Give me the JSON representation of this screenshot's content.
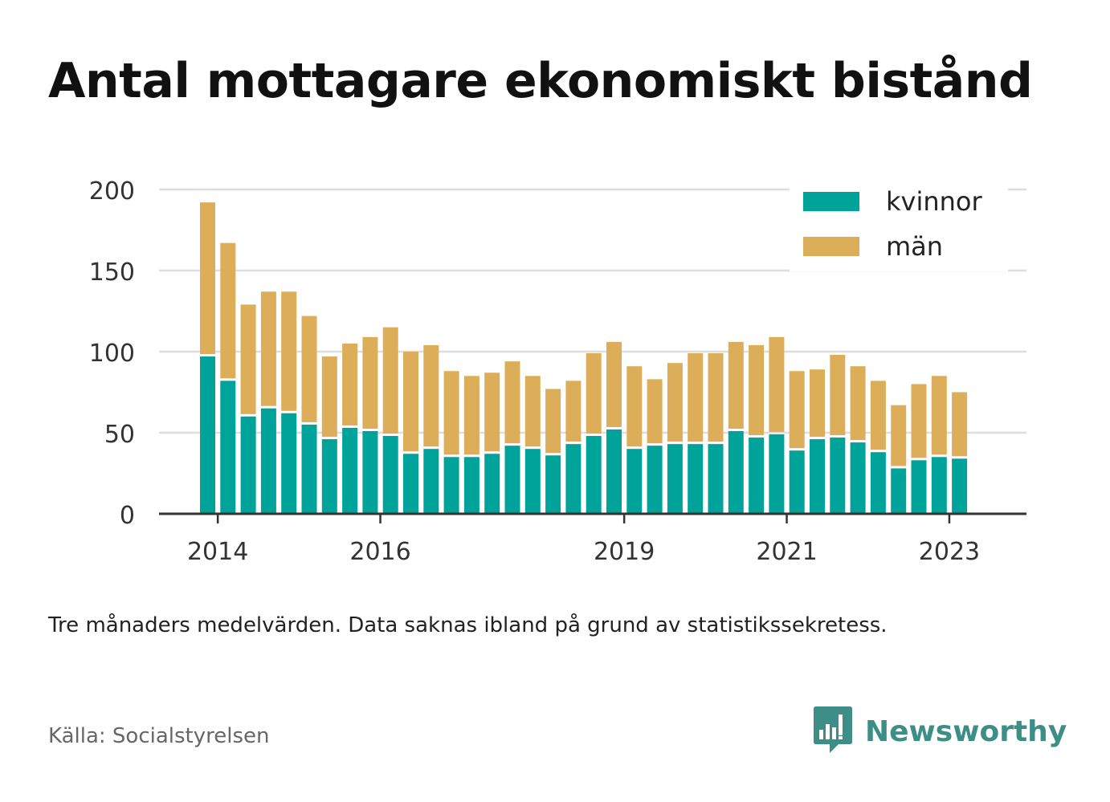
{
  "title": "Antal mottagare ekonomiskt bistånd",
  "caption": "Tre månaders medelvärden. Data saknas ibland på grund av statistikssekretess.",
  "source": "Källa: Socialstyrelsen",
  "brand": {
    "name": "Newsworthy",
    "icon": "newsworthy-logo-icon",
    "color": "#3c8e86"
  },
  "chart_data": {
    "type": "bar",
    "stacked": true,
    "x_tick_labels": [
      "2014",
      "2016",
      "2019",
      "2021",
      "2023"
    ],
    "x_tick_positions": [
      1,
      9,
      21,
      29,
      37
    ],
    "ylim": [
      0,
      200
    ],
    "y_ticks": [
      0,
      50,
      100,
      150,
      200
    ],
    "grid": true,
    "legend_position": "top-right",
    "series": [
      {
        "name": "kvinnor",
        "color": "#00a39a",
        "values": [
          97,
          82,
          60,
          65,
          62,
          55,
          46,
          53,
          51,
          48,
          37,
          40,
          35,
          35,
          37,
          42,
          40,
          36,
          43,
          48,
          52,
          40,
          42,
          43,
          43,
          43,
          51,
          47,
          49,
          39,
          46,
          47,
          44,
          38,
          28,
          33,
          35,
          34
        ]
      },
      {
        "name": "män",
        "color": "#dcae5a",
        "values": [
          95,
          85,
          69,
          72,
          75,
          67,
          51,
          52,
          58,
          67,
          63,
          64,
          53,
          50,
          50,
          52,
          45,
          41,
          39,
          51,
          54,
          51,
          41,
          50,
          56,
          56,
          55,
          57,
          60,
          49,
          43,
          51,
          47,
          44,
          39,
          47,
          50,
          41
        ]
      }
    ]
  }
}
